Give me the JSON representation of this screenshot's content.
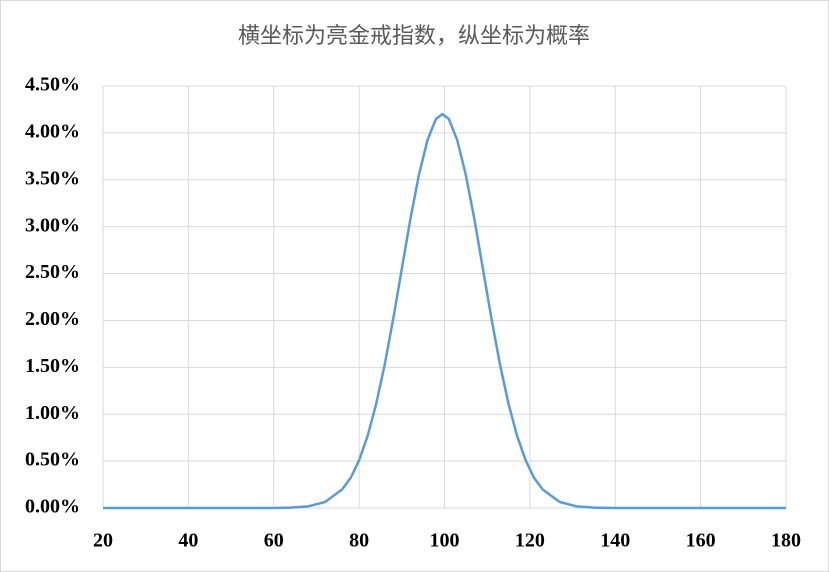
{
  "chart_data": {
    "type": "line",
    "title": "横坐标为亮金戒指数，纵坐标为概率",
    "x": [
      20,
      40,
      60,
      64,
      68,
      72,
      76,
      78,
      80,
      82,
      84,
      86,
      88,
      90,
      92,
      94,
      96,
      98,
      99.5,
      101,
      103,
      105,
      107,
      109,
      111,
      113,
      115,
      117,
      119,
      121,
      123,
      127,
      131,
      135,
      140,
      160,
      180
    ],
    "series": [
      {
        "color": "#5b9bd5",
        "values": [
          0,
          0,
          0,
          0.0039,
          0.017,
          0.064,
          0.197,
          0.32,
          0.51,
          0.77,
          1.11,
          1.53,
          2.02,
          2.55,
          3.08,
          3.55,
          3.92,
          4.15,
          4.2,
          4.15,
          3.92,
          3.55,
          3.08,
          2.55,
          2.02,
          1.53,
          1.11,
          0.77,
          0.51,
          0.32,
          0.197,
          0.064,
          0.017,
          0.0039,
          0,
          0,
          0
        ]
      }
    ],
    "xlim": [
      20,
      180
    ],
    "xticks": [
      20,
      40,
      60,
      80,
      100,
      120,
      140,
      160,
      180
    ],
    "ylim": [
      0,
      4.5
    ],
    "yticks": [
      {
        "value": 0,
        "label": "0.00%"
      },
      {
        "value": 0.5,
        "label": "0.50%"
      },
      {
        "value": 1,
        "label": "1.00%"
      },
      {
        "value": 1.5,
        "label": "1.50%"
      },
      {
        "value": 2,
        "label": "2.00%"
      },
      {
        "value": 2.5,
        "label": "2.50%"
      },
      {
        "value": 3,
        "label": "3.00%"
      },
      {
        "value": 3.5,
        "label": "3.50%"
      },
      {
        "value": 4,
        "label": "4.00%"
      },
      {
        "value": 4.5,
        "label": "4.50%"
      }
    ],
    "grid": true
  }
}
